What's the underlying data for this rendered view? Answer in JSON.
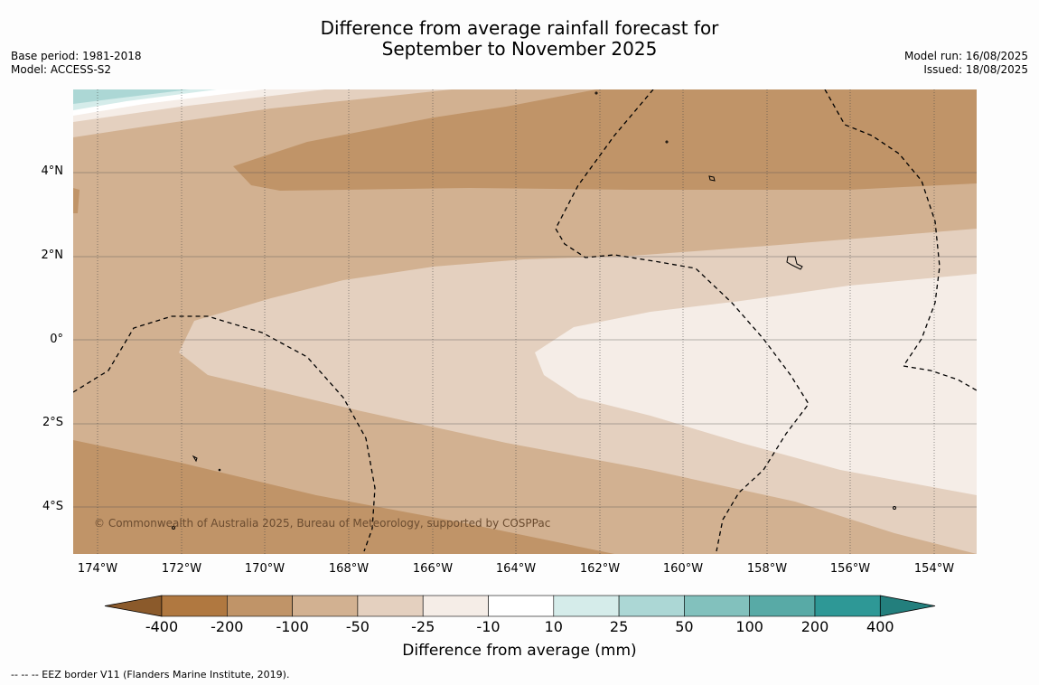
{
  "title_line1": "Difference from average rainfall forecast for",
  "title_line2": "September to November 2025",
  "meta_left": {
    "base_period": "Base period: 1981-2018",
    "model": "Model: ACCESS-S2"
  },
  "meta_right": {
    "model_run": "Model run: 16/08/2025",
    "issued": "Issued: 18/08/2025"
  },
  "lat_labels": [
    "4°N",
    "2°N",
    "0°",
    "2°S",
    "4°S"
  ],
  "lon_labels": [
    "174°W",
    "172°W",
    "170°W",
    "168°W",
    "166°W",
    "164°W",
    "162°W",
    "160°W",
    "158°W",
    "156°W",
    "154°W"
  ],
  "copyright": "© Commonwealth of Australia 2025, Bureau of Meteorology, supported by COSPPac",
  "colorbar": {
    "title": "Difference from average (mm)",
    "labels": [
      "-400",
      "-200",
      "-100",
      "-50",
      "-25",
      "-10",
      "10",
      "25",
      "50",
      "100",
      "200",
      "400"
    ],
    "colors": [
      "#8b5a2b",
      "#b07840",
      "#c09468",
      "#d2b191",
      "#e4d0bf",
      "#f5ede7",
      "#ffffff",
      "#d5ecea",
      "#acd7d5",
      "#82c1bd",
      "#58aaa6",
      "#2e9896",
      "#237f7d"
    ]
  },
  "footer": "--  --  -- EEZ border V11 (Flanders Marine Institute, 2019)."
}
